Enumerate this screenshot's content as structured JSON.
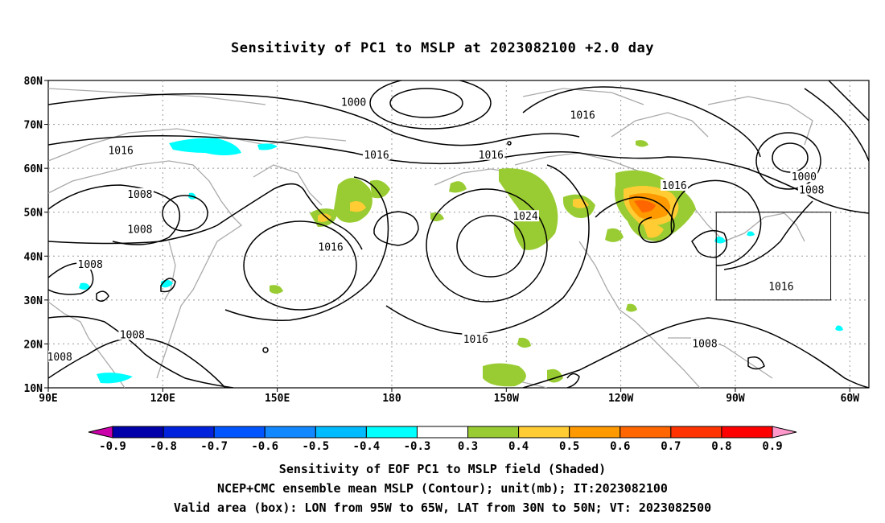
{
  "title": "Sensitivity of PC1 to MSLP at 2023082100 +2.0 day",
  "map": {
    "lon_range": [
      "90E",
      "55W"
    ],
    "lat_range": [
      10,
      80
    ],
    "lat_ticks": [
      {
        "lat": 80,
        "label": "80N"
      },
      {
        "lat": 70,
        "label": "70N"
      },
      {
        "lat": 60,
        "label": "60N"
      },
      {
        "lat": 50,
        "label": "50N"
      },
      {
        "lat": 40,
        "label": "40N"
      },
      {
        "lat": 30,
        "label": "30N"
      },
      {
        "lat": 20,
        "label": "20N"
      },
      {
        "lat": 10,
        "label": "10N"
      }
    ],
    "lon_ticks": [
      {
        "lon": 90,
        "label": "90E"
      },
      {
        "lon": 120,
        "label": "120E"
      },
      {
        "lon": 150,
        "label": "150E"
      },
      {
        "lon": 180,
        "label": "180"
      },
      {
        "lon": 210,
        "label": "150W"
      },
      {
        "lon": 240,
        "label": "120W"
      },
      {
        "lon": 270,
        "label": "90W"
      },
      {
        "lon": 300,
        "label": "60W"
      }
    ],
    "valid_box": {
      "lon_min": 265,
      "lon_max": 295,
      "lat_min": 30,
      "lat_max": 50
    },
    "contour_labels": [
      {
        "text": "1000",
        "lon": 170,
        "lat": 75
      },
      {
        "text": "1016",
        "lon": 230,
        "lat": 72
      },
      {
        "text": "1016",
        "lon": 109,
        "lat": 64
      },
      {
        "text": "1016",
        "lon": 176,
        "lat": 63
      },
      {
        "text": "1016",
        "lon": 206,
        "lat": 63
      },
      {
        "text": "1000",
        "lon": 288,
        "lat": 58
      },
      {
        "text": "1008",
        "lon": 290,
        "lat": 55
      },
      {
        "text": "1016",
        "lon": 254,
        "lat": 56
      },
      {
        "text": "1008",
        "lon": 114,
        "lat": 54
      },
      {
        "text": "1024",
        "lon": 215,
        "lat": 49
      },
      {
        "text": "1008",
        "lon": 114,
        "lat": 46
      },
      {
        "text": "1016",
        "lon": 164,
        "lat": 42
      },
      {
        "text": "1008",
        "lon": 101,
        "lat": 38
      },
      {
        "text": "1016",
        "lon": 282,
        "lat": 33
      },
      {
        "text": "1008",
        "lon": 112,
        "lat": 22
      },
      {
        "text": "1016",
        "lon": 202,
        "lat": 21
      },
      {
        "text": "1008",
        "lon": 262,
        "lat": 20
      },
      {
        "text": "1008",
        "lon": 93,
        "lat": 17
      }
    ],
    "colorbar": {
      "labels": [
        "-0.9",
        "-0.8",
        "-0.7",
        "-0.6",
        "-0.5",
        "-0.4",
        "-0.3",
        "0.3",
        "0.4",
        "0.5",
        "0.6",
        "0.7",
        "0.8",
        "0.9"
      ],
      "colors": [
        "#cc00aa",
        "#0000aa",
        "#0022dd",
        "#0055ff",
        "#1188ff",
        "#00bbff",
        "#00ffff",
        "#ffffff",
        "#99cc33",
        "#ffcc33",
        "#ff9900",
        "#ff6600",
        "#ff3300",
        "#ff0000",
        "#ff99cc"
      ]
    }
  },
  "captions": [
    "Sensitivity of EOF PC1 to MSLP field (Shaded)",
    "NCEP+CMC ensemble mean MSLP (Contour); unit(mb); IT:2023082100",
    "Valid area (box): LON from 95W to 65W, LAT from 30N to 50N; VT: 2023082500"
  ]
}
